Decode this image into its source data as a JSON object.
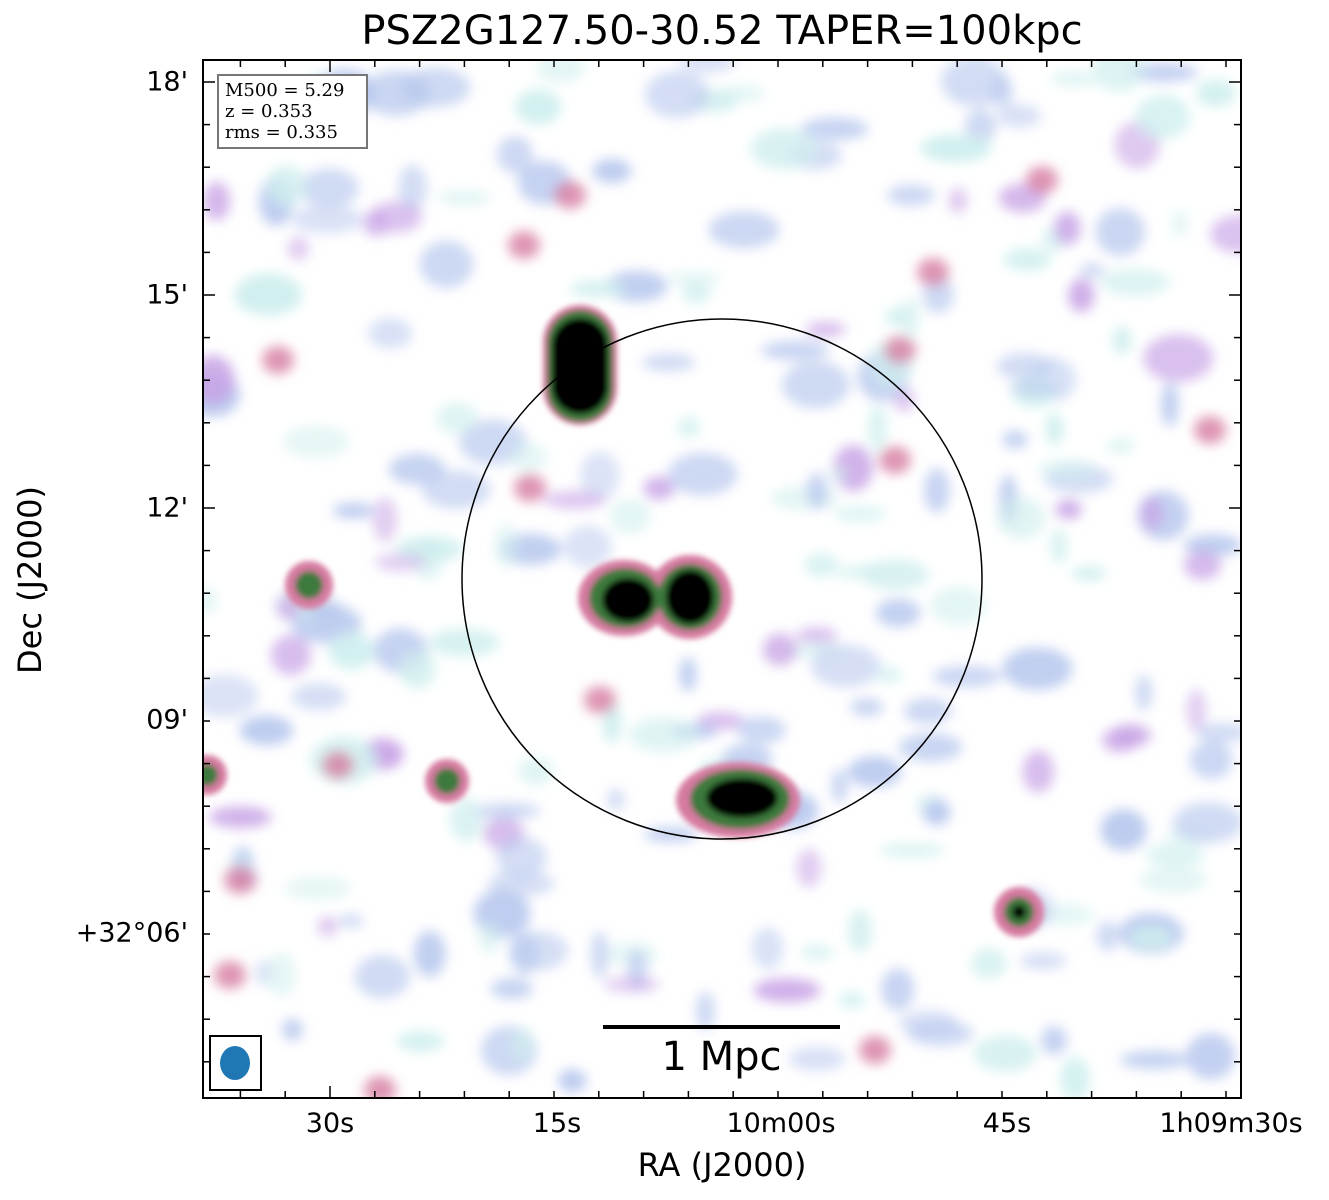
{
  "title": "PSZ2G127.50-30.52 TAPER=100kpc",
  "axes": {
    "xlabel": "RA (J2000)",
    "ylabel": "Dec (J2000)",
    "xticks": [
      "30s",
      "15s",
      "10m00s",
      "45s",
      "1h09m30s"
    ],
    "yticks": [
      "18'",
      "15'",
      "12'",
      "09'",
      "+32°06'"
    ]
  },
  "info_box": {
    "line1": "M500 = 5.29",
    "line2": "z = 0.353",
    "line3": "rms = 0.335"
  },
  "scale_bar": {
    "label": "1 Mpc"
  },
  "beam": {
    "color": "#1f77b4"
  },
  "colors": {
    "faint_cyan": "#cfeeee",
    "light_blue": "#b8c8ee",
    "lavender": "#c8a4e6",
    "pink": "#d67aa0",
    "green": "#3e7a3e",
    "core": "#000000"
  }
}
